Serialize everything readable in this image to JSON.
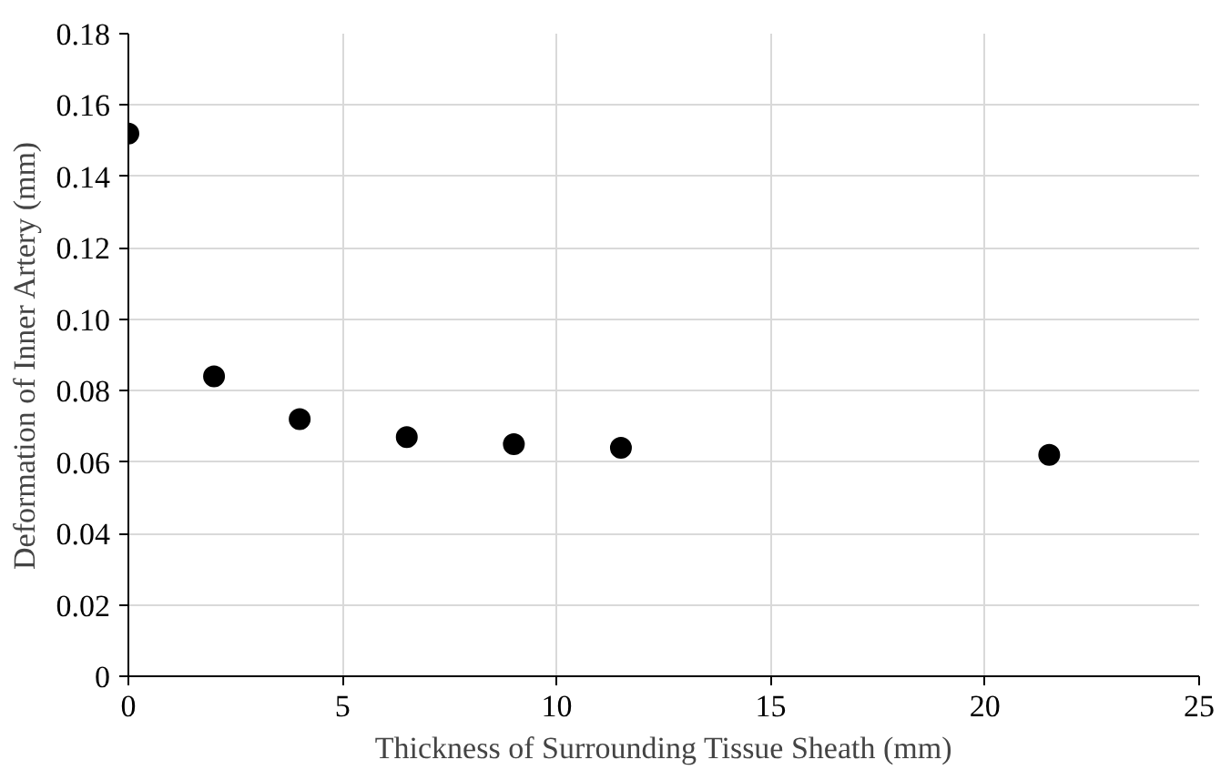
{
  "chart_data": {
    "type": "scatter",
    "xlabel": "Thickness of Surrounding Tissue Sheath (mm)",
    "ylabel": "Deformation of Inner Artery (mm)",
    "x": [
      0,
      2,
      4,
      6.5,
      9,
      11.5,
      21.5
    ],
    "series": [
      {
        "color": "#000000",
        "values": [
          0.152,
          0.084,
          0.072,
          0.067,
          0.065,
          0.064,
          0.062
        ]
      }
    ],
    "xlim": [
      0,
      25
    ],
    "xticks": [
      0,
      5,
      10,
      15,
      20,
      25
    ],
    "ylim": [
      0,
      0.18
    ],
    "yticks": [
      {
        "value": 0,
        "label": "0"
      },
      {
        "value": 0.02,
        "label": "0.02"
      },
      {
        "value": 0.04,
        "label": "0.04"
      },
      {
        "value": 0.06,
        "label": "0.06"
      },
      {
        "value": 0.08,
        "label": "0.08"
      },
      {
        "value": 0.1,
        "label": "0.10"
      },
      {
        "value": 0.12,
        "label": "0.12"
      },
      {
        "value": 0.14,
        "label": "0.14"
      },
      {
        "value": 0.16,
        "label": "0.16"
      },
      {
        "value": 0.18,
        "label": "0.18"
      }
    ],
    "grid": true,
    "marker": "circle"
  }
}
